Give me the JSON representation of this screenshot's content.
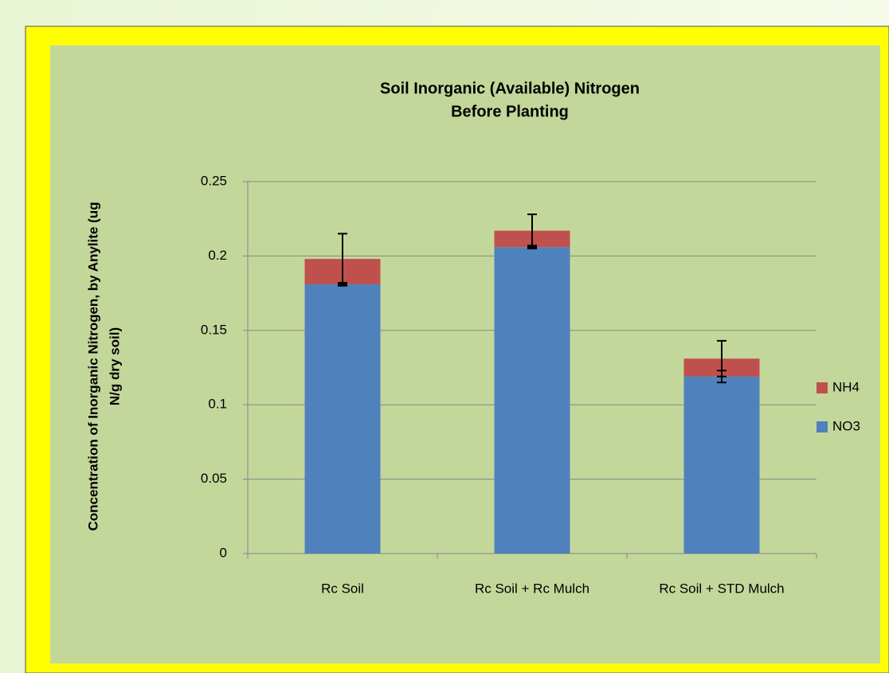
{
  "chart_data": {
    "type": "stacked_bar",
    "title": "Soil Inorganic (Available) Nitrogen",
    "subtitle": "Before Planting",
    "y_label": [
      "Concentration of Inorganic Nitrogen, by Anylite (ug",
      "N/g dry soil)"
    ],
    "categories": [
      "Rc Soil",
      "Rc Soil + Rc Mulch",
      "Rc Soil + STD Mulch"
    ],
    "series": [
      {
        "name": "NO3",
        "color": "#4f81bd",
        "values": [
          0.181,
          0.206,
          0.119
        ],
        "errors": [
          0.001,
          0.001,
          0.004
        ]
      },
      {
        "name": "NH4",
        "color": "#c0504d",
        "values": [
          0.017,
          0.011,
          0.012
        ],
        "errors": [
          0.017,
          0.011,
          0.012
        ]
      }
    ],
    "ylim": [
      0,
      0.25
    ],
    "yticks": [
      0,
      0.05,
      0.1,
      0.15,
      0.2,
      0.25
    ],
    "grid": true,
    "legend": "right"
  }
}
